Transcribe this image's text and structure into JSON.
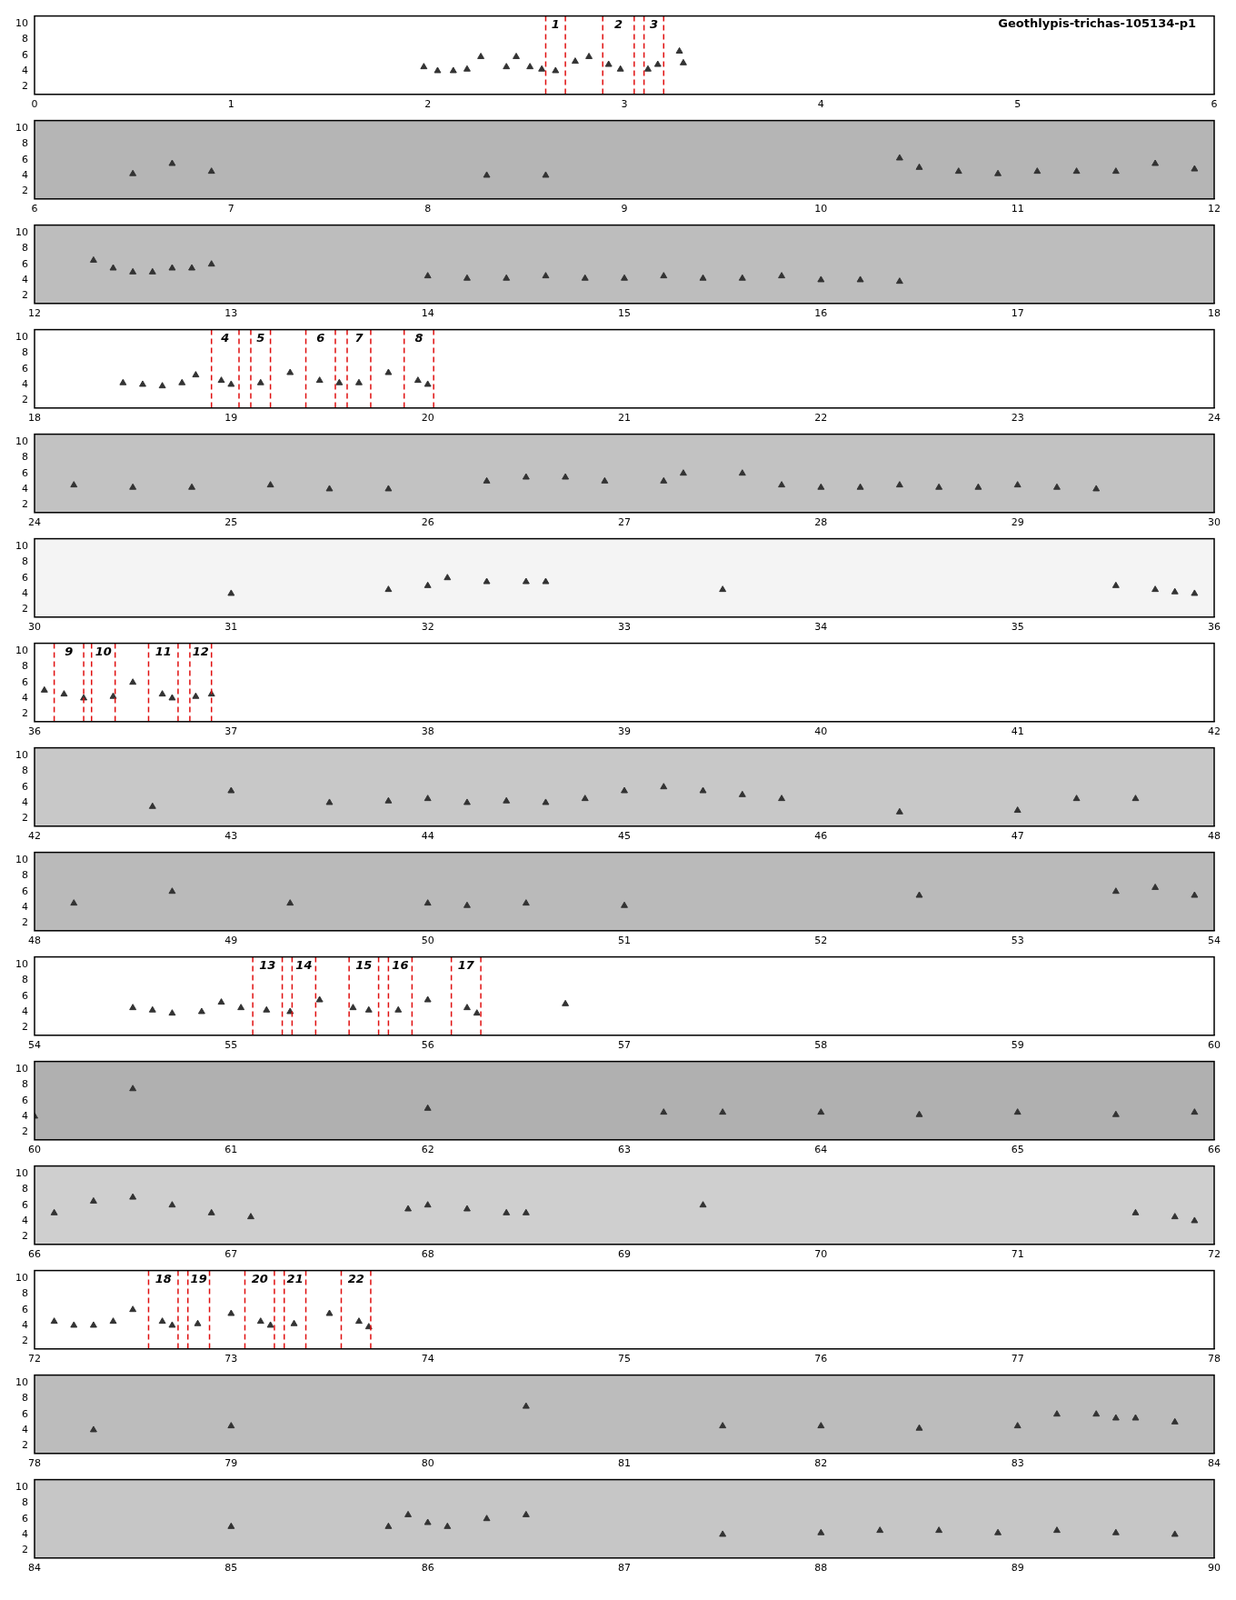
{
  "chart_data": [
    {
      "type": "scatter",
      "title": "Geothlypis-trichas-105134-p1",
      "xlim": [
        0,
        6
      ],
      "xticks": [
        0,
        1,
        2,
        3,
        4,
        5,
        6
      ],
      "ylim": [
        1,
        11
      ],
      "yticks": [
        2,
        4,
        6,
        8,
        10
      ],
      "color": "#333333",
      "marker": "triangle",
      "x": [
        1.98,
        2.05,
        2.13,
        2.2,
        2.27,
        2.4,
        2.45,
        2.52,
        2.58,
        2.65,
        2.75,
        2.82,
        2.92,
        2.98,
        3.12,
        3.17,
        3.28,
        3.3
      ],
      "values": [
        4.5,
        4,
        4,
        4.2,
        5.8,
        4.5,
        5.8,
        4.5,
        4.2,
        4,
        5.2,
        5.8,
        4.8,
        4.2,
        4.2,
        4.8,
        6.5,
        5
      ],
      "segments": [
        {
          "label": 1,
          "start": 2.6,
          "end": 2.7
        },
        {
          "label": 2,
          "start": 2.89,
          "end": 3.05
        },
        {
          "label": 3,
          "start": 3.1,
          "end": 3.2
        }
      ]
    },
    {
      "type": "scatter",
      "xlim": [
        6,
        12
      ],
      "xticks": [
        6,
        7,
        8,
        9,
        10,
        11,
        12
      ],
      "ylim": [
        1,
        11
      ],
      "yticks": [
        2,
        4,
        6,
        8,
        10
      ],
      "color": "#333333",
      "marker": "triangle",
      "x": [
        6.5,
        6.7,
        6.9,
        8.3,
        8.6,
        10.4,
        10.5,
        10.7,
        10.9,
        11.1,
        11.3,
        11.5,
        11.7,
        11.9
      ],
      "values": [
        4.2,
        5.5,
        4.5,
        4,
        4,
        6.2,
        5,
        4.5,
        4.2,
        4.5,
        4.5,
        4.5,
        5.5,
        4.8
      ],
      "segments": []
    },
    {
      "type": "scatter",
      "xlim": [
        12,
        18
      ],
      "xticks": [
        12,
        13,
        14,
        15,
        16,
        17,
        18
      ],
      "ylim": [
        1,
        11
      ],
      "yticks": [
        2,
        4,
        6,
        8,
        10
      ],
      "color": "#333333",
      "marker": "triangle",
      "x": [
        12.3,
        12.4,
        12.5,
        12.6,
        12.7,
        12.8,
        12.9,
        14.0,
        14.2,
        14.4,
        14.6,
        14.8,
        15.0,
        15.2,
        15.4,
        15.6,
        15.8,
        16.0,
        16.2,
        16.4
      ],
      "values": [
        6.5,
        5.5,
        5,
        5,
        5.5,
        5.5,
        6,
        4.5,
        4.2,
        4.2,
        4.5,
        4.2,
        4.2,
        4.5,
        4.2,
        4.2,
        4.5,
        4,
        4,
        3.8
      ],
      "segments": []
    },
    {
      "type": "scatter",
      "xlim": [
        18,
        24
      ],
      "xticks": [
        18,
        19,
        20,
        21,
        22,
        23,
        24
      ],
      "ylim": [
        1,
        11
      ],
      "yticks": [
        2,
        4,
        6,
        8,
        10
      ],
      "color": "#333333",
      "marker": "triangle",
      "x": [
        18.45,
        18.55,
        18.65,
        18.75,
        18.82,
        18.95,
        19.0,
        19.15,
        19.3,
        19.45,
        19.55,
        19.65,
        19.8,
        19.95,
        20.0
      ],
      "values": [
        4.2,
        4,
        3.8,
        4.2,
        5.2,
        4.5,
        4,
        4.2,
        5.5,
        4.5,
        4.2,
        4.2,
        5.5,
        4.5,
        4
      ],
      "segments": [
        {
          "label": 4,
          "start": 18.9,
          "end": 19.04
        },
        {
          "label": 5,
          "start": 19.1,
          "end": 19.2
        },
        {
          "label": 6,
          "start": 19.38,
          "end": 19.53
        },
        {
          "label": 7,
          "start": 19.59,
          "end": 19.71
        },
        {
          "label": 8,
          "start": 19.88,
          "end": 20.03
        }
      ]
    },
    {
      "type": "scatter",
      "xlim": [
        24,
        30
      ],
      "xticks": [
        24,
        25,
        26,
        27,
        28,
        29,
        30
      ],
      "ylim": [
        1,
        11
      ],
      "yticks": [
        2,
        4,
        6,
        8,
        10
      ],
      "color": "#333333",
      "marker": "triangle",
      "x": [
        24.2,
        24.5,
        24.8,
        25.2,
        25.5,
        25.8,
        26.3,
        26.5,
        26.7,
        26.9,
        27.2,
        27.3,
        27.6,
        27.8,
        28.0,
        28.2,
        28.4,
        28.6,
        28.8,
        29.0,
        29.2,
        29.4
      ],
      "values": [
        4.5,
        4.2,
        4.2,
        4.5,
        4,
        4,
        5,
        5.5,
        5.5,
        5,
        5,
        6,
        6,
        4.5,
        4.2,
        4.2,
        4.5,
        4.2,
        4.2,
        4.5,
        4.2,
        4
      ],
      "segments": []
    },
    {
      "type": "scatter",
      "xlim": [
        30,
        36
      ],
      "xticks": [
        30,
        31,
        32,
        33,
        34,
        35,
        36
      ],
      "ylim": [
        1,
        11
      ],
      "yticks": [
        2,
        4,
        6,
        8,
        10
      ],
      "color": "#333333",
      "marker": "triangle",
      "x": [
        31.0,
        31.8,
        32.0,
        32.1,
        32.3,
        32.5,
        32.6,
        33.5,
        35.5,
        35.7,
        35.8,
        35.9
      ],
      "values": [
        4,
        4.5,
        5,
        6,
        5.5,
        5.5,
        5.5,
        4.5,
        5,
        4.5,
        4.2,
        4
      ],
      "segments": []
    },
    {
      "type": "scatter",
      "xlim": [
        36,
        42
      ],
      "xticks": [
        36,
        37,
        38,
        39,
        40,
        41,
        42
      ],
      "ylim": [
        1,
        11
      ],
      "yticks": [
        2,
        4,
        6,
        8,
        10
      ],
      "color": "#333333",
      "marker": "triangle",
      "x": [
        36.05,
        36.15,
        36.25,
        36.4,
        36.5,
        36.65,
        36.7,
        36.82,
        36.9
      ],
      "values": [
        5,
        4.5,
        4,
        4.2,
        6,
        4.5,
        4,
        4.2,
        4.5
      ],
      "segments": [
        {
          "label": 9,
          "start": 36.1,
          "end": 36.25
        },
        {
          "label": 10,
          "start": 36.29,
          "end": 36.41
        },
        {
          "label": 11,
          "start": 36.58,
          "end": 36.73
        },
        {
          "label": 12,
          "start": 36.79,
          "end": 36.9
        }
      ]
    },
    {
      "type": "scatter",
      "xlim": [
        42,
        48
      ],
      "xticks": [
        42,
        43,
        44,
        45,
        46,
        47,
        48
      ],
      "ylim": [
        1,
        11
      ],
      "yticks": [
        2,
        4,
        6,
        8,
        10
      ],
      "color": "#333333",
      "marker": "triangle",
      "x": [
        42.6,
        43.0,
        43.5,
        43.8,
        44.0,
        44.2,
        44.4,
        44.6,
        44.8,
        45.0,
        45.2,
        45.4,
        45.6,
        45.8,
        46.4,
        47.0,
        47.3,
        47.6
      ],
      "values": [
        3.5,
        5.5,
        4,
        4.2,
        4.5,
        4,
        4.2,
        4,
        4.5,
        5.5,
        6,
        5.5,
        5,
        4.5,
        2.8,
        3,
        4.5,
        4.5
      ],
      "segments": []
    },
    {
      "type": "scatter",
      "xlim": [
        48,
        54
      ],
      "xticks": [
        48,
        49,
        50,
        51,
        52,
        53,
        54
      ],
      "ylim": [
        1,
        11
      ],
      "yticks": [
        2,
        4,
        6,
        8,
        10
      ],
      "color": "#333333",
      "marker": "triangle",
      "x": [
        48.2,
        48.7,
        49.3,
        50.0,
        50.2,
        50.5,
        51.0,
        52.5,
        53.5,
        53.7,
        53.9
      ],
      "values": [
        4.5,
        6,
        4.5,
        4.5,
        4.2,
        4.5,
        4.2,
        5.5,
        6,
        6.5,
        5.5
      ],
      "segments": []
    },
    {
      "type": "scatter",
      "xlim": [
        54,
        60
      ],
      "xticks": [
        54,
        55,
        56,
        57,
        58,
        59,
        60
      ],
      "ylim": [
        1,
        11
      ],
      "yticks": [
        2,
        4,
        6,
        8,
        10
      ],
      "color": "#333333",
      "marker": "triangle",
      "x": [
        54.5,
        54.6,
        54.7,
        54.85,
        54.95,
        55.05,
        55.18,
        55.3,
        55.45,
        55.62,
        55.7,
        55.85,
        56.0,
        56.2,
        56.25,
        56.7
      ],
      "values": [
        4.5,
        4.2,
        3.8,
        4,
        5.2,
        4.5,
        4.2,
        4,
        5.5,
        4.5,
        4.2,
        4.2,
        5.5,
        4.5,
        3.8,
        5
      ],
      "segments": [
        {
          "label": 13,
          "start": 55.11,
          "end": 55.26
        },
        {
          "label": 14,
          "start": 55.31,
          "end": 55.43
        },
        {
          "label": 15,
          "start": 55.6,
          "end": 55.75
        },
        {
          "label": 16,
          "start": 55.8,
          "end": 55.92
        },
        {
          "label": 17,
          "start": 56.12,
          "end": 56.27
        }
      ]
    },
    {
      "type": "scatter",
      "xlim": [
        60,
        66
      ],
      "xticks": [
        60,
        61,
        62,
        63,
        64,
        65,
        66
      ],
      "ylim": [
        1,
        11
      ],
      "yticks": [
        2,
        4,
        6,
        8,
        10
      ],
      "color": "#333333",
      "marker": "triangle",
      "x": [
        60.0,
        60.5,
        62.0,
        63.2,
        63.5,
        64.0,
        64.5,
        65.0,
        65.5,
        65.9
      ],
      "values": [
        4,
        7.5,
        5,
        4.5,
        4.5,
        4.5,
        4.2,
        4.5,
        4.2,
        4.5
      ],
      "segments": []
    },
    {
      "type": "scatter",
      "xlim": [
        66,
        72
      ],
      "xticks": [
        66,
        67,
        68,
        69,
        70,
        71,
        72
      ],
      "ylim": [
        1,
        11
      ],
      "yticks": [
        2,
        4,
        6,
        8,
        10
      ],
      "color": "#333333",
      "marker": "triangle",
      "x": [
        66.1,
        66.3,
        66.5,
        66.7,
        66.9,
        67.1,
        67.9,
        68.0,
        68.2,
        68.4,
        68.5,
        69.4,
        71.6,
        71.8,
        71.9
      ],
      "values": [
        5,
        6.5,
        7,
        6,
        5,
        4.5,
        5.5,
        6,
        5.5,
        5,
        5,
        6,
        5,
        4.5,
        4
      ],
      "segments": []
    },
    {
      "type": "scatter",
      "xlim": [
        72,
        78
      ],
      "xticks": [
        72,
        73,
        74,
        75,
        76,
        77,
        78
      ],
      "ylim": [
        1,
        11
      ],
      "yticks": [
        2,
        4,
        6,
        8,
        10
      ],
      "color": "#333333",
      "marker": "triangle",
      "x": [
        72.1,
        72.2,
        72.3,
        72.4,
        72.5,
        72.65,
        72.7,
        72.83,
        73.0,
        73.15,
        73.2,
        73.32,
        73.5,
        73.65,
        73.7
      ],
      "values": [
        4.5,
        4,
        4,
        4.5,
        6,
        4.5,
        4,
        4.2,
        5.5,
        4.5,
        4,
        4.2,
        5.5,
        4.5,
        3.8
      ],
      "segments": [
        {
          "label": 18,
          "start": 72.58,
          "end": 72.73
        },
        {
          "label": 19,
          "start": 72.78,
          "end": 72.89
        },
        {
          "label": 20,
          "start": 73.07,
          "end": 73.22
        },
        {
          "label": 21,
          "start": 73.27,
          "end": 73.38
        },
        {
          "label": 22,
          "start": 73.56,
          "end": 73.71
        }
      ]
    },
    {
      "type": "scatter",
      "xlim": [
        78,
        84
      ],
      "xticks": [
        78,
        79,
        80,
        81,
        82,
        83,
        84
      ],
      "ylim": [
        1,
        11
      ],
      "yticks": [
        2,
        4,
        6,
        8,
        10
      ],
      "color": "#333333",
      "marker": "triangle",
      "x": [
        78.3,
        79.0,
        80.5,
        81.5,
        82.0,
        82.5,
        83.0,
        83.2,
        83.4,
        83.5,
        83.6,
        83.8
      ],
      "values": [
        4,
        4.5,
        7,
        4.5,
        4.5,
        4.2,
        4.5,
        6,
        6,
        5.5,
        5.5,
        5
      ],
      "segments": []
    },
    {
      "type": "scatter",
      "xlim": [
        84,
        90
      ],
      "xticks": [
        84,
        85,
        86,
        87,
        88,
        89,
        90
      ],
      "ylim": [
        1,
        11
      ],
      "yticks": [
        2,
        4,
        6,
        8,
        10
      ],
      "color": "#333333",
      "marker": "triangle",
      "x": [
        85.0,
        85.8,
        85.9,
        86.0,
        86.1,
        86.3,
        86.5,
        87.5,
        88.0,
        88.3,
        88.6,
        88.9,
        89.2,
        89.5,
        89.8
      ],
      "values": [
        5,
        5,
        6.5,
        5.5,
        5,
        6,
        6.5,
        4,
        4.2,
        4.5,
        4.5,
        4.2,
        4.5,
        4.2,
        4
      ],
      "segments": []
    }
  ]
}
